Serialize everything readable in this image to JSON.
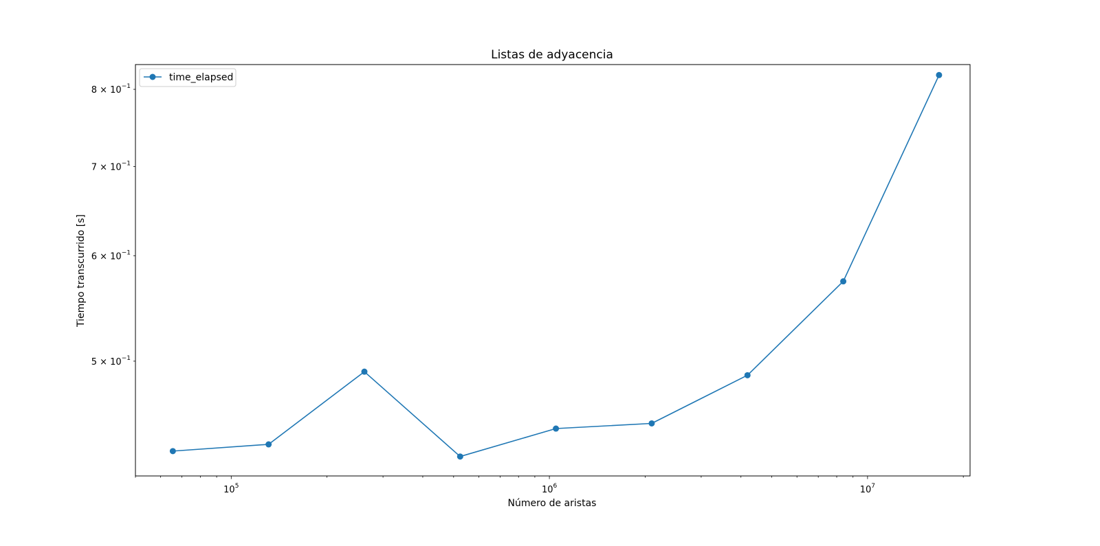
{
  "chart_data": {
    "type": "line",
    "title": "Listas de adyacencia",
    "xlabel": "Número de aristas",
    "ylabel": "Tiempo transcurrido [s]",
    "xscale": "log",
    "yscale": "log",
    "xlim": [
      50000,
      21000000
    ],
    "ylim": [
      0.41,
      0.835
    ],
    "grid": false,
    "legend_position": "top-left",
    "x_major_ticks": [
      {
        "value": 100000,
        "base": "10",
        "exp": "5"
      },
      {
        "value": 1000000,
        "base": "10",
        "exp": "6"
      },
      {
        "value": 10000000,
        "base": "10",
        "exp": "7"
      }
    ],
    "y_ticks": [
      {
        "value": 0.5,
        "mant": "5",
        "base": "10",
        "exp": "−1"
      },
      {
        "value": 0.6,
        "mant": "6",
        "base": "10",
        "exp": "−1"
      },
      {
        "value": 0.7,
        "mant": "7",
        "base": "10",
        "exp": "−1"
      },
      {
        "value": 0.8,
        "mant": "8",
        "base": "10",
        "exp": "−1"
      }
    ],
    "series": [
      {
        "name": "time_elapsed",
        "color": "#1f77b4",
        "x": [
          65536,
          131072,
          262144,
          524288,
          1048576,
          2097152,
          4194304,
          8388608,
          16777216
        ],
        "y": [
          0.428,
          0.433,
          0.491,
          0.424,
          0.445,
          0.449,
          0.488,
          0.574,
          0.82
        ]
      }
    ]
  }
}
